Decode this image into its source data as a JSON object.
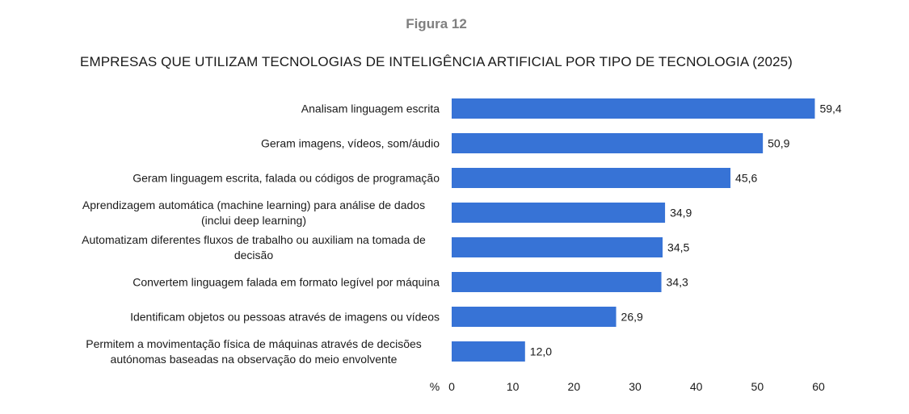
{
  "figure_label": "Figura 12",
  "chart_data": {
    "type": "bar",
    "orientation": "horizontal",
    "title": "EMPRESAS QUE UTILIZAM TECNOLOGIAS DE INTELIGÊNCIA ARTIFICIAL POR TIPO DE TECNOLOGIA (2025)",
    "xlabel": "%",
    "ylabel": "",
    "xlim": [
      0,
      60
    ],
    "xticks": [
      0,
      10,
      20,
      30,
      40,
      50,
      60
    ],
    "grid": false,
    "legend": false,
    "bar_color": "#3773D6",
    "categories": [
      [
        "Analisam linguagem escrita"
      ],
      [
        "Geram imagens, vídeos, som/áudio"
      ],
      [
        "Geram linguagem escrita, falada ou códigos de programação"
      ],
      [
        "Aprendizagem automática (machine learning) para análise de dados",
        "(inclui deep learning)"
      ],
      [
        "Automatizam diferentes fluxos de trabalho ou auxiliam na tomada de",
        "decisão"
      ],
      [
        "Convertem linguagem falada em formato legível por máquina"
      ],
      [
        "Identificam objetos ou pessoas através de imagens ou vídeos"
      ],
      [
        "Permitem a movimentação física de máquinas através de decisões",
        "autónomas baseadas na observação do meio envolvente"
      ]
    ],
    "values": [
      59.4,
      50.9,
      45.6,
      34.9,
      34.5,
      34.3,
      26.9,
      12.0
    ],
    "value_labels": [
      "59,4",
      "50,9",
      "45,6",
      "34,9",
      "34,5",
      "34,3",
      "26,9",
      "12,0"
    ]
  }
}
